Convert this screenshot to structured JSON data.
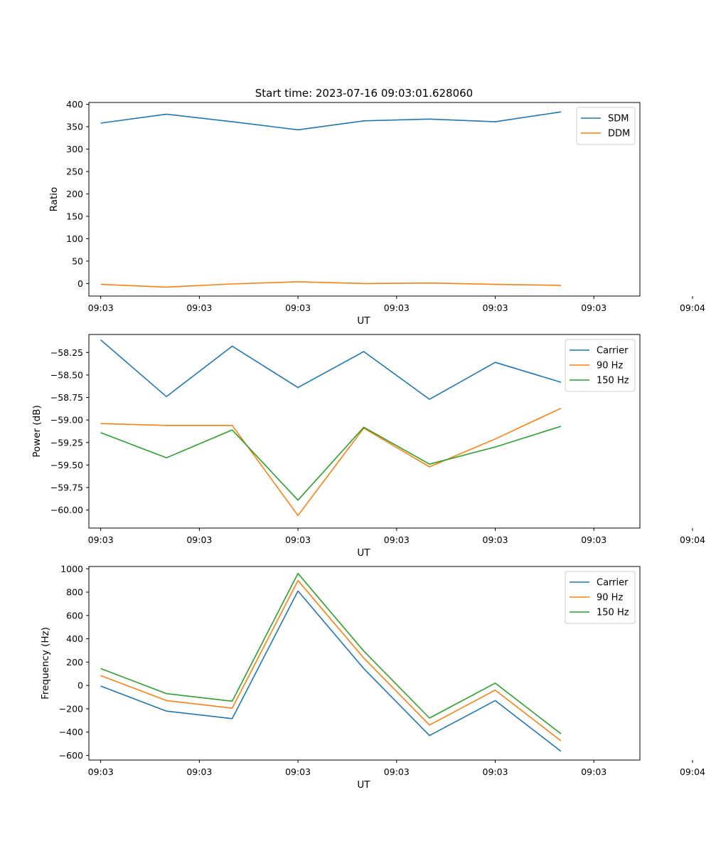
{
  "figure_title": "Start time: 2023-07-16 09:03:01.628060",
  "colors": {
    "blue": "#1f77b4",
    "orange": "#ff7f0e",
    "green": "#2ca02c"
  },
  "chart_data": [
    {
      "type": "line",
      "title": "Start time: 2023-07-16 09:03:01.628060",
      "xlabel": "UT",
      "ylabel": "Ratio",
      "x": [
        1,
        2,
        3,
        4,
        5,
        6,
        7,
        8
      ],
      "xlim": [
        0.82,
        9.2
      ],
      "xticks": [
        1,
        2.5,
        4,
        5.5,
        7,
        8.5,
        10
      ],
      "xtick_labels": [
        "09:03",
        "09:03",
        "09:03",
        "09:03",
        "09:03",
        "09:03",
        "09:04"
      ],
      "ylim": [
        -28,
        404
      ],
      "yticks": [
        0,
        50,
        100,
        150,
        200,
        250,
        300,
        350,
        400
      ],
      "ytick_labels": [
        "0",
        "50",
        "100",
        "150",
        "200",
        "250",
        "300",
        "350",
        "400"
      ],
      "legend_position": "top-right",
      "series": [
        {
          "name": "SDM",
          "color": "#1f77b4",
          "values": [
            358,
            378,
            361,
            343,
            363,
            367,
            361,
            383
          ]
        },
        {
          "name": "DDM",
          "color": "#ff7f0e",
          "values": [
            -2,
            -8,
            -1,
            4,
            0,
            1,
            -2,
            -4
          ]
        }
      ]
    },
    {
      "type": "line",
      "title": "",
      "xlabel": "UT",
      "ylabel": "Power (dB)",
      "x": [
        1,
        2,
        3,
        4,
        5,
        6,
        7,
        8
      ],
      "xlim": [
        0.82,
        9.2
      ],
      "xticks": [
        1,
        2.5,
        4,
        5.5,
        7,
        8.5,
        10
      ],
      "xtick_labels": [
        "09:03",
        "09:03",
        "09:03",
        "09:03",
        "09:03",
        "09:03",
        "09:04"
      ],
      "ylim": [
        -60.2,
        -58.05
      ],
      "yticks": [
        -58.25,
        -58.5,
        -58.75,
        -59.0,
        -59.25,
        -59.5,
        -59.75,
        -60.0
      ],
      "ytick_labels": [
        "−58.25",
        "−58.50",
        "−58.75",
        "−59.00",
        "−59.25",
        "−59.50",
        "−59.75",
        "−60.00"
      ],
      "legend_position": "top-right",
      "series": [
        {
          "name": "Carrier",
          "color": "#1f77b4",
          "values": [
            -58.11,
            -58.74,
            -58.18,
            -58.64,
            -58.24,
            -58.77,
            -58.36,
            -58.58
          ]
        },
        {
          "name": "90 Hz",
          "color": "#ff7f0e",
          "values": [
            -59.04,
            -59.06,
            -59.06,
            -60.06,
            -59.09,
            -59.52,
            -59.21,
            -58.87
          ]
        },
        {
          "name": "150 Hz",
          "color": "#2ca02c",
          "values": [
            -59.14,
            -59.42,
            -59.11,
            -59.89,
            -59.08,
            -59.49,
            -59.3,
            -59.07
          ]
        }
      ]
    },
    {
      "type": "line",
      "title": "",
      "xlabel": "UT",
      "ylabel": "Frequency (Hz)",
      "x": [
        1,
        2,
        3,
        4,
        5,
        6,
        7,
        8
      ],
      "xlim": [
        0.82,
        9.2
      ],
      "xticks": [
        1,
        2.5,
        4,
        5.5,
        7,
        8.5,
        10
      ],
      "xtick_labels": [
        "09:03",
        "09:03",
        "09:03",
        "09:03",
        "09:03",
        "09:03",
        "09:04"
      ],
      "ylim": [
        -640,
        1020
      ],
      "yticks": [
        -600,
        -400,
        -200,
        0,
        200,
        400,
        600,
        800,
        1000
      ],
      "ytick_labels": [
        "−600",
        "−400",
        "−200",
        "0",
        "200",
        "400",
        "600",
        "800",
        "1000"
      ],
      "legend_position": "top-right",
      "series": [
        {
          "name": "Carrier",
          "color": "#1f77b4",
          "values": [
            -5,
            -220,
            -285,
            810,
            145,
            -430,
            -130,
            -565
          ]
        },
        {
          "name": "90 Hz",
          "color": "#ff7f0e",
          "values": [
            85,
            -130,
            -195,
            900,
            235,
            -340,
            -40,
            -475
          ]
        },
        {
          "name": "150 Hz",
          "color": "#2ca02c",
          "values": [
            145,
            -70,
            -135,
            960,
            295,
            -280,
            20,
            -415
          ]
        }
      ]
    }
  ]
}
